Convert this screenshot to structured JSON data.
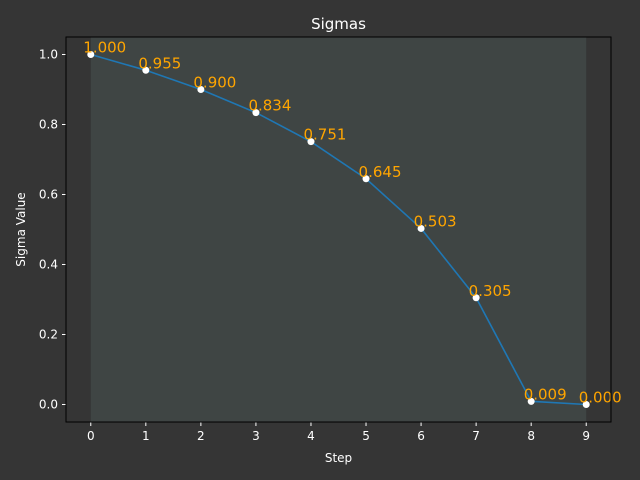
{
  "chart_data": {
    "type": "line",
    "title": "Sigmas",
    "xlabel": "Step",
    "ylabel": "Sigma Value",
    "x": [
      0,
      1,
      2,
      3,
      4,
      5,
      6,
      7,
      8,
      9
    ],
    "values": [
      1.0,
      0.955,
      0.9,
      0.834,
      0.751,
      0.645,
      0.503,
      0.305,
      0.009,
      0.0
    ],
    "data_labels": [
      "1.000",
      "0.955",
      "0.900",
      "0.834",
      "0.751",
      "0.645",
      "0.503",
      "0.305",
      "0.009",
      "0.000"
    ],
    "xlim": [
      -0.45,
      9.45
    ],
    "ylim": [
      -0.05,
      1.05
    ],
    "xticks": [
      0,
      1,
      2,
      3,
      4,
      5,
      6,
      7,
      8,
      9
    ],
    "xtick_labels": [
      "0",
      "1",
      "2",
      "3",
      "4",
      "5",
      "6",
      "7",
      "8",
      "9"
    ],
    "yticks": [
      0.0,
      0.2,
      0.4,
      0.6,
      0.8,
      1.0
    ],
    "ytick_labels": [
      "0.0",
      "0.2",
      "0.4",
      "0.6",
      "0.8",
      "1.0"
    ],
    "shaded_x_range": [
      0,
      9
    ],
    "grid": false,
    "legend": "none"
  },
  "colors": {
    "figure_background": "#353535",
    "axes_background": "#353535",
    "shaded_region": "#3f4544",
    "line": "#1f77b4",
    "marker": "#ffffff",
    "data_label": "#ffa500",
    "text": "#ffffff",
    "spine": "#000000"
  }
}
